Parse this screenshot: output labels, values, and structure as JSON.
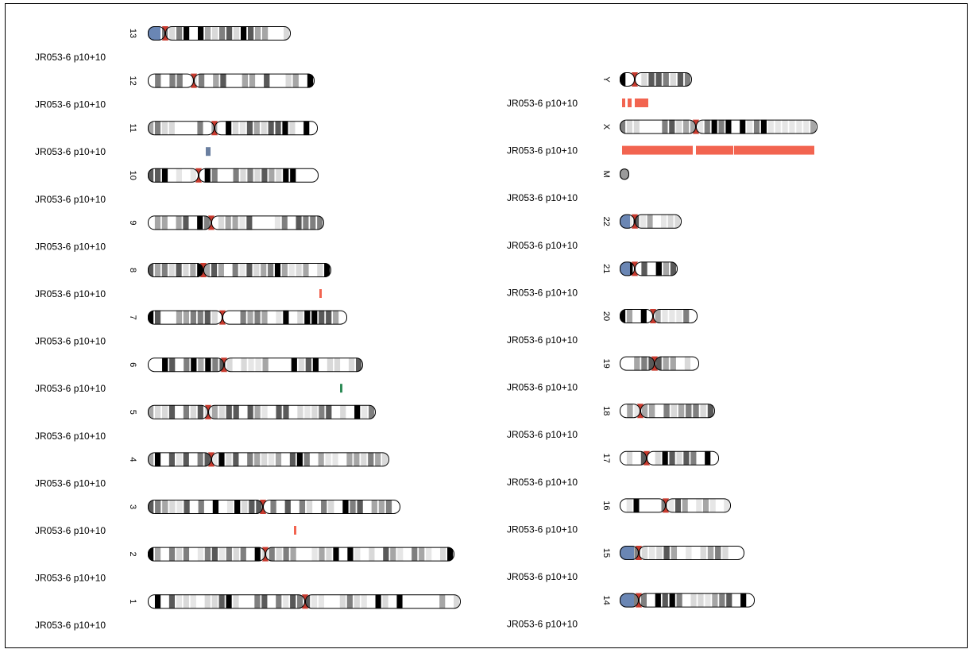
{
  "sample_label": "JR053-6 p10+10",
  "colors": {
    "gain": "#f26450",
    "loss": "#6a7fa0",
    "other": "#2e8b57",
    "centromere": "#c83a2e",
    "acrocentric": "#6a86b4",
    "outline": "#000000"
  },
  "chromosomes_left": [
    {
      "name": "13",
      "tracks": []
    },
    {
      "name": "12",
      "tracks": []
    },
    {
      "name": "11",
      "tracks": [
        {
          "kind": "loss"
        }
      ]
    },
    {
      "name": "10",
      "tracks": []
    },
    {
      "name": "9",
      "tracks": []
    },
    {
      "name": "8",
      "tracks": [
        {
          "kind": "gain"
        }
      ]
    },
    {
      "name": "7",
      "tracks": []
    },
    {
      "name": "6",
      "tracks": [
        {
          "kind": "other"
        }
      ]
    },
    {
      "name": "5",
      "tracks": []
    },
    {
      "name": "4",
      "tracks": []
    },
    {
      "name": "3",
      "tracks": [
        {
          "kind": "gain"
        }
      ]
    },
    {
      "name": "2",
      "tracks": []
    },
    {
      "name": "1",
      "tracks": []
    }
  ],
  "chromosomes_right": [
    {
      "name": "Y",
      "tracks": [
        {
          "kind": "gain"
        },
        {
          "kind": "gain"
        },
        {
          "kind": "gain"
        }
      ]
    },
    {
      "name": "X",
      "tracks": [
        {
          "kind": "gain"
        },
        {
          "kind": "gain"
        },
        {
          "kind": "gain"
        }
      ]
    },
    {
      "name": "M",
      "tracks": []
    },
    {
      "name": "22",
      "tracks": []
    },
    {
      "name": "21",
      "tracks": []
    },
    {
      "name": "20",
      "tracks": []
    },
    {
      "name": "19",
      "tracks": []
    },
    {
      "name": "18",
      "tracks": []
    },
    {
      "name": "17",
      "tracks": []
    },
    {
      "name": "16",
      "tracks": []
    },
    {
      "name": "15",
      "tracks": []
    },
    {
      "name": "14",
      "tracks": []
    }
  ]
}
